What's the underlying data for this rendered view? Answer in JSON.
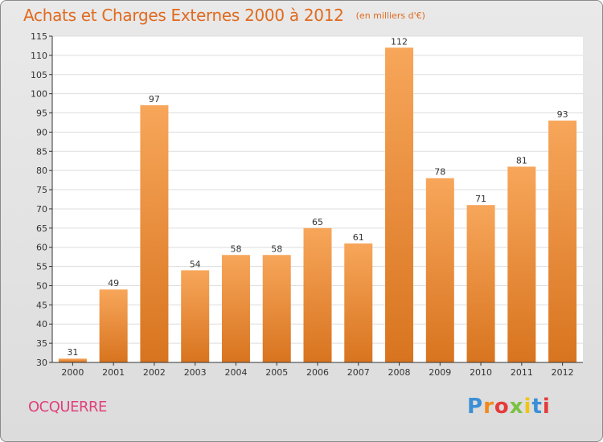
{
  "header": {
    "title": "Achats et Charges Externes 2000 à 2012",
    "subtitle": "(en milliers d'€)"
  },
  "location": "OCQUERRE",
  "logo": {
    "text": "Proxiti",
    "letter_colors": [
      "#3b8fd6",
      "#f08a1c",
      "#e53b3b",
      "#7cc242",
      "#f0c419",
      "#3b8fd6",
      "#e53b3b"
    ]
  },
  "chart_data": {
    "type": "bar",
    "categories": [
      "2000",
      "2001",
      "2002",
      "2003",
      "2004",
      "2005",
      "2006",
      "2007",
      "2008",
      "2009",
      "2010",
      "2011",
      "2012"
    ],
    "values": [
      31,
      49,
      97,
      54,
      58,
      58,
      65,
      61,
      112,
      78,
      71,
      81,
      93
    ],
    "ylim": [
      30,
      115
    ],
    "yticks": [
      30,
      35,
      40,
      45,
      50,
      55,
      60,
      65,
      70,
      75,
      80,
      85,
      90,
      95,
      100,
      105,
      110,
      115
    ],
    "grid": true,
    "bar_color_top": "#f7a65a",
    "bar_color_bottom": "#d8741f",
    "title": "Achats et Charges Externes 2000 à 2012",
    "xlabel": "",
    "ylabel": ""
  }
}
